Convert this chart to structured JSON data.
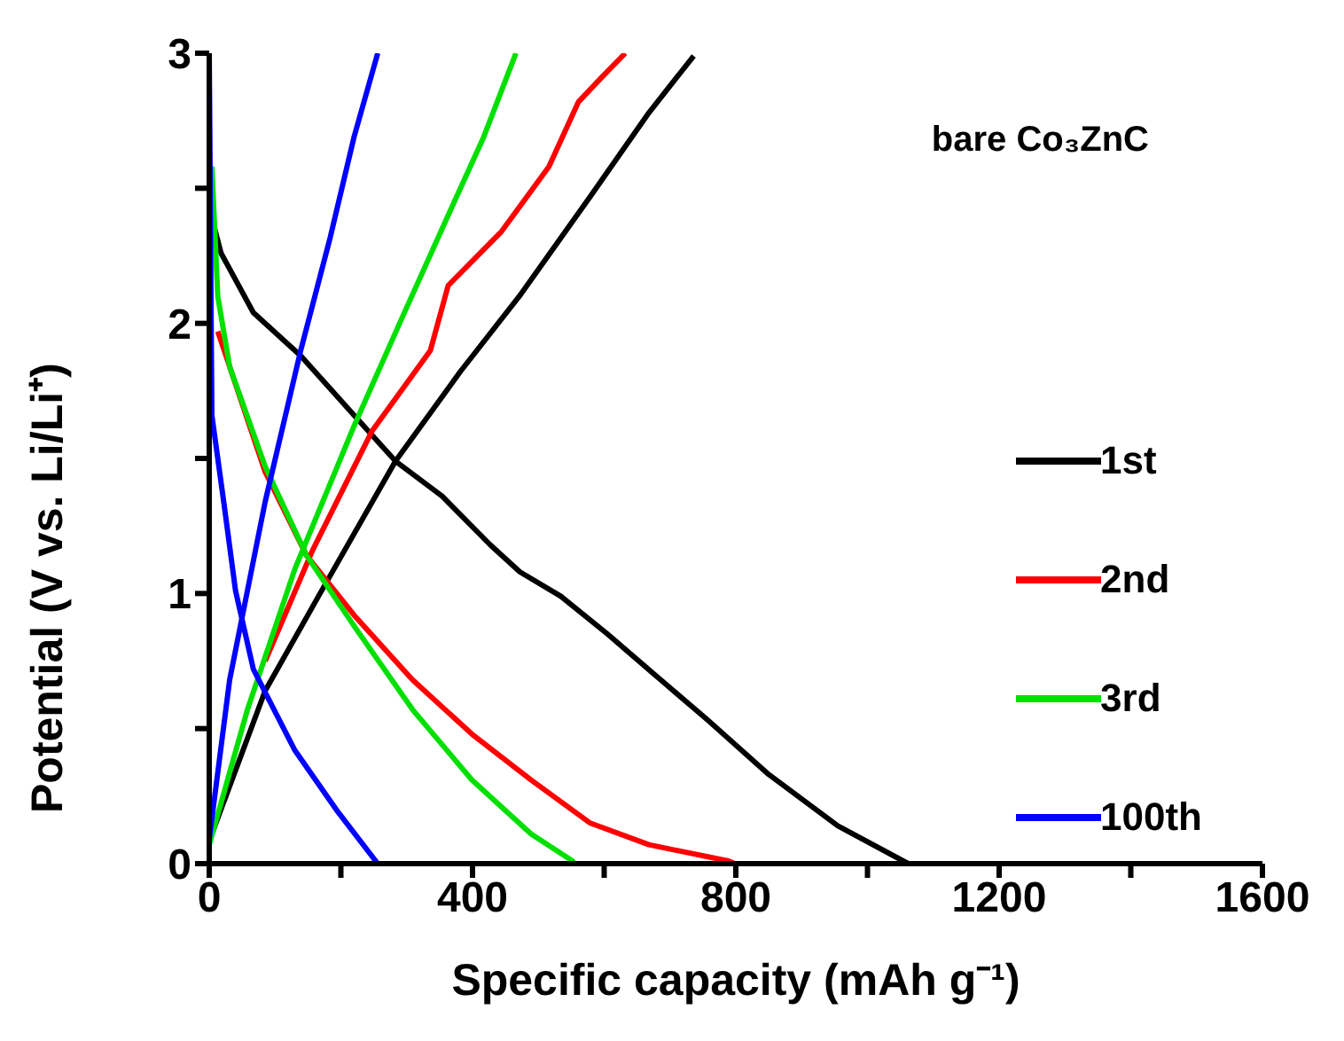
{
  "chart_data": {
    "type": "line",
    "xlabel": "Specific capacity (mAh g⁻¹)",
    "ylabel": "Potential (V vs. Li/Li⁺)",
    "annotations": [
      "bare Co₃ZnC"
    ],
    "xlim": [
      0,
      1600
    ],
    "xticks": [
      0,
      {
        "value": 200,
        "label": null
      },
      400,
      {
        "value": 600,
        "label": null
      },
      800,
      {
        "value": 1000,
        "label": null
      },
      1200,
      {
        "value": 1400,
        "label": null
      },
      1600
    ],
    "ylim": [
      0,
      3
    ],
    "yticks": [
      0,
      {
        "value": 0.5,
        "label": null
      },
      1,
      {
        "value": 1.5,
        "label": null
      },
      2,
      {
        "value": 2.5,
        "label": null
      },
      3
    ],
    "legend": "right",
    "grid": false,
    "marker": "none",
    "line_style": "solid",
    "series": [
      {
        "name": "1st",
        "color": "#000000",
        "x": [
          0,
          4,
          18,
          67,
          139,
          220,
          283,
          354,
          427,
          472,
          534,
          605,
          686,
          758,
          850,
          955,
          1062
        ],
        "values": [
          2.45,
          2.39,
          2.26,
          2.04,
          1.88,
          1.66,
          1.49,
          1.36,
          1.18,
          1.08,
          0.99,
          0.85,
          0.68,
          0.53,
          0.33,
          0.14,
          0
        ]
      },
      {
        "color": "#000000",
        "x": [
          4,
          85,
          166,
          283,
          381,
          471,
          579,
          668,
          736
        ],
        "values": [
          0.11,
          0.64,
          0.99,
          1.49,
          1.82,
          2.1,
          2.47,
          2.78,
          2.99
        ]
      },
      {
        "name": "2nd",
        "color": "#ff0000",
        "x": [
          13,
          85,
          148,
          220,
          309,
          399,
          489,
          579,
          668,
          789,
          798
        ],
        "values": [
          1.97,
          1.45,
          1.14,
          0.92,
          0.68,
          0.48,
          0.31,
          0.15,
          0.07,
          0.01,
          0
        ]
      },
      {
        "color": "#ff0000",
        "x": [
          85,
          157,
          247,
          336,
          363,
          444,
          516,
          561,
          596,
          632
        ],
        "values": [
          0.75,
          1.16,
          1.6,
          1.9,
          2.14,
          2.34,
          2.58,
          2.82,
          2.91,
          3
        ]
      },
      {
        "name": "3rd",
        "color": "#00e000",
        "x": [
          4,
          13,
          31,
          85,
          148,
          220,
          309,
          399,
          489,
          552,
          555
        ],
        "values": [
          2.58,
          2.1,
          1.84,
          1.47,
          1.14,
          0.88,
          0.57,
          0.31,
          0.11,
          0.01,
          0
        ]
      },
      {
        "color": "#00e000",
        "x": [
          0,
          58,
          130,
          220,
          291,
          363,
          417,
          466
        ],
        "values": [
          0.07,
          0.57,
          1.09,
          1.62,
          2.01,
          2.4,
          2.69,
          3
        ]
      },
      {
        "name": "100th",
        "color": "#0000ff",
        "x": [
          0,
          4,
          22,
          40,
          67,
          130,
          193,
          256
        ],
        "values": [
          3,
          1.66,
          1.34,
          1.01,
          0.72,
          0.42,
          0.2,
          0
        ]
      },
      {
        "color": "#0000ff",
        "x": [
          0,
          31,
          85,
          139,
          184,
          220,
          256
        ],
        "values": [
          0.09,
          0.68,
          1.34,
          1.9,
          2.32,
          2.69,
          3
        ]
      }
    ]
  }
}
